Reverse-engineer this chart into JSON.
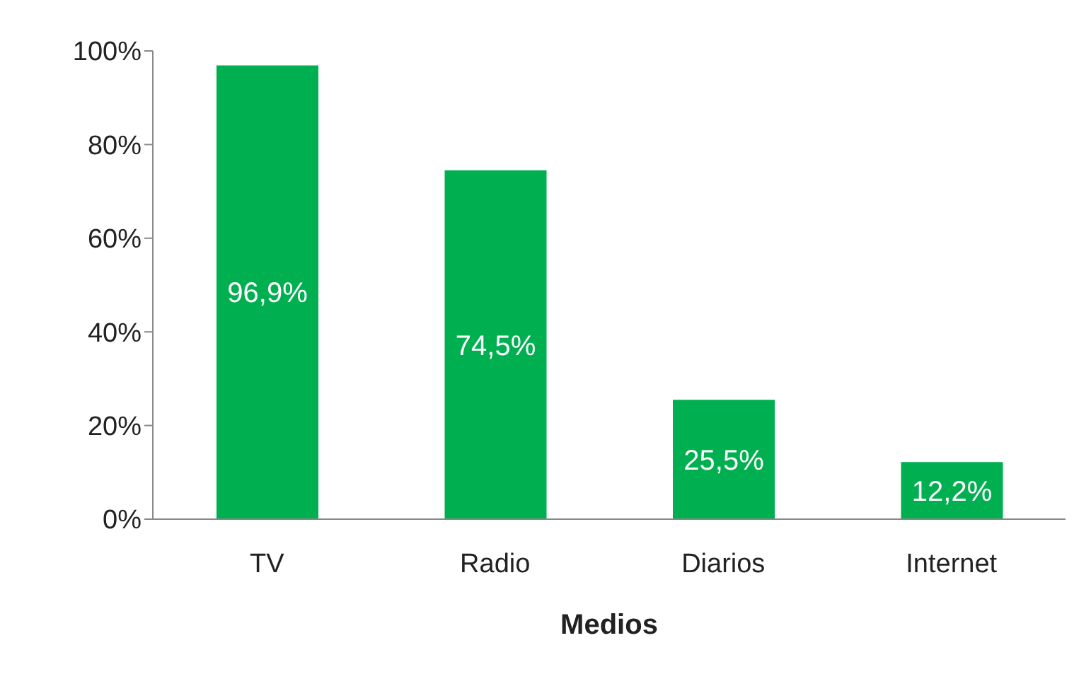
{
  "chart_data": {
    "type": "bar",
    "xlabel": "Medios",
    "categories": [
      "TV",
      "Radio",
      "Diarios",
      "Internet"
    ],
    "values": [
      96.9,
      74.5,
      25.5,
      12.2
    ],
    "value_labels": [
      "96,9%",
      "74,5%",
      "25,5%",
      "12,2%"
    ],
    "color": "#00b050",
    "ylim": [
      0,
      100
    ],
    "yticks": [
      {
        "value": 0,
        "label": "0%"
      },
      {
        "value": 20,
        "label": "20%"
      },
      {
        "value": 40,
        "label": "40%"
      },
      {
        "value": 60,
        "label": "60%"
      },
      {
        "value": 80,
        "label": "80%"
      },
      {
        "value": 100,
        "label": "100%"
      }
    ],
    "grid": false,
    "legend": false
  }
}
